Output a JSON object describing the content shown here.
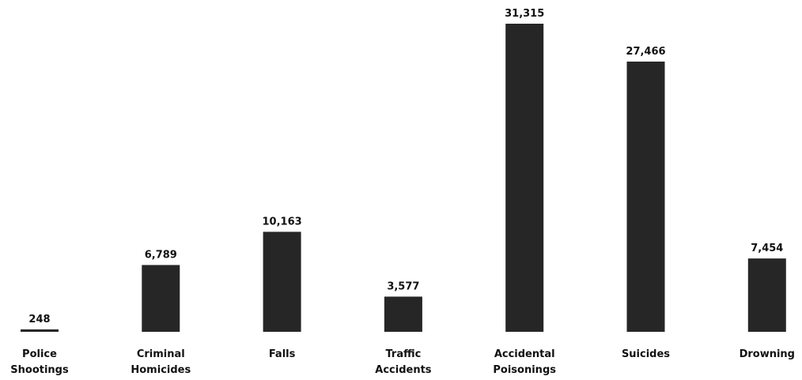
{
  "chart_data": {
    "type": "bar",
    "categories": [
      "Police Shootings",
      "Criminal Homicides",
      "Falls",
      "Traffic Accidents",
      "Accidental Poisonings",
      "Suicides",
      "Drowning"
    ],
    "values": [
      248,
      6789,
      10163,
      3577,
      31315,
      27466,
      7454
    ],
    "value_labels": [
      "248",
      "6,789",
      "10,163",
      "3,577",
      "31,315",
      "27,466",
      "7,454"
    ],
    "color": "#262626"
  }
}
